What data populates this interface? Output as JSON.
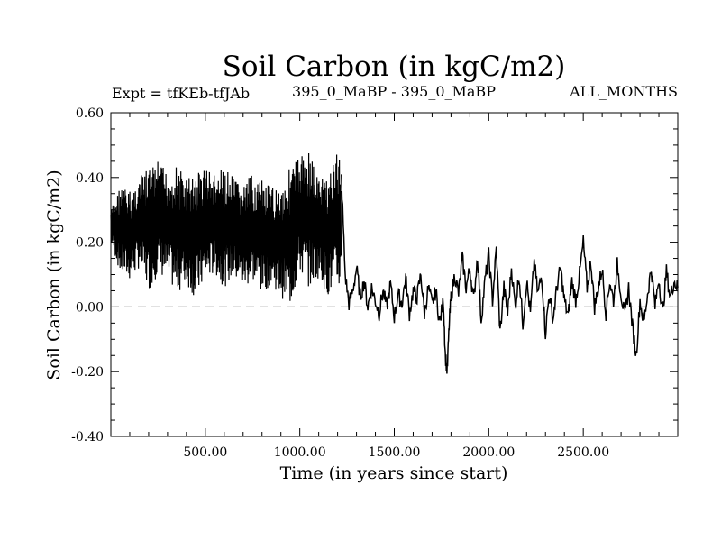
{
  "chart_data": {
    "type": "line",
    "title": "Soil Carbon (in kgC/m2)",
    "subtitle_left": "Expt = tfKEb-tfJAb",
    "subtitle_center": "395_0_MaBP - 395_0_MaBP",
    "subtitle_right": "ALL_MONTHS",
    "xlabel": "Time (in years since start)",
    "ylabel": "Soil Carbon (in kgC/m2)",
    "xlim": [
      0,
      3000
    ],
    "ylim": [
      -0.4,
      0.6
    ],
    "xticks": [
      500,
      1000,
      1500,
      2000,
      2500
    ],
    "xtick_labels": [
      "500.00",
      "1000.00",
      "1500.00",
      "2000.00",
      "2500.00"
    ],
    "yticks": [
      -0.4,
      -0.2,
      0.0,
      0.2,
      0.4,
      0.6
    ],
    "ytick_labels": [
      "-0.40",
      "-0.20",
      "0.00",
      "0.20",
      "0.40",
      "0.60"
    ],
    "reference_line": {
      "y": 0.0,
      "style": "dashed",
      "color": "#888888"
    },
    "series": [
      {
        "color": "#000000",
        "segments": [
          {
            "x_range": [
              0,
              1220
            ],
            "description": "high-variance oscillation",
            "envelope_x": [
              0,
              50,
              100,
              150,
              200,
              250,
              300,
              350,
              400,
              450,
              500,
              550,
              600,
              650,
              700,
              750,
              800,
              850,
              900,
              950,
              1000,
              1050,
              1100,
              1150,
              1200,
              1220
            ],
            "envelope_upper": [
              0.3,
              0.38,
              0.36,
              0.4,
              0.43,
              0.45,
              0.42,
              0.44,
              0.4,
              0.42,
              0.44,
              0.41,
              0.43,
              0.4,
              0.38,
              0.41,
              0.39,
              0.37,
              0.38,
              0.44,
              0.47,
              0.49,
              0.4,
              0.42,
              0.48,
              0.47
            ],
            "envelope_lower": [
              0.2,
              0.1,
              0.08,
              0.12,
              0.05,
              0.1,
              0.08,
              0.04,
              0.07,
              0.02,
              0.08,
              0.1,
              0.06,
              0.09,
              0.05,
              0.08,
              0.04,
              0.07,
              0.03,
              0.0,
              0.1,
              0.06,
              0.09,
              0.03,
              0.05,
              0.05
            ]
          },
          {
            "x_range": [
              1220,
              3000
            ],
            "description": "lower-variance fluctuation",
            "x": [
              1220,
              1240,
              1260,
              1280,
              1300,
              1320,
              1340,
              1360,
              1380,
              1400,
              1420,
              1440,
              1460,
              1480,
              1500,
              1520,
              1540,
              1560,
              1580,
              1600,
              1620,
              1640,
              1660,
              1680,
              1700,
              1720,
              1740,
              1760,
              1770,
              1780,
              1790,
              1800,
              1820,
              1840,
              1860,
              1880,
              1900,
              1920,
              1940,
              1960,
              1980,
              2000,
              2020,
              2040,
              2060,
              2080,
              2100,
              2120,
              2140,
              2160,
              2180,
              2200,
              2220,
              2240,
              2260,
              2280,
              2300,
              2320,
              2340,
              2360,
              2380,
              2400,
              2420,
              2440,
              2460,
              2480,
              2500,
              2520,
              2540,
              2560,
              2580,
              2600,
              2620,
              2640,
              2660,
              2680,
              2700,
              2720,
              2740,
              2760,
              2780,
              2800,
              2820,
              2840,
              2860,
              2880,
              2900,
              2920,
              2940,
              2960,
              2980,
              3000
            ],
            "y": [
              0.4,
              0.1,
              0.01,
              0.05,
              0.12,
              0.03,
              0.08,
              0.0,
              0.06,
              0.02,
              -0.02,
              0.05,
              0.0,
              0.07,
              -0.03,
              0.04,
              0.01,
              0.09,
              -0.02,
              0.05,
              0.03,
              0.1,
              -0.02,
              0.06,
              0.01,
              0.05,
              -0.05,
              0.02,
              -0.15,
              -0.2,
              -0.06,
              0.03,
              0.1,
              0.04,
              0.15,
              0.06,
              0.12,
              0.02,
              0.16,
              -0.04,
              0.08,
              0.16,
              0.02,
              0.18,
              -0.08,
              0.06,
              -0.02,
              0.12,
              0.0,
              0.1,
              -0.05,
              0.08,
              -0.02,
              0.14,
              0.04,
              0.1,
              -0.08,
              0.04,
              -0.04,
              0.06,
              0.12,
              0.02,
              -0.03,
              0.08,
              0.02,
              0.1,
              0.2,
              0.06,
              0.14,
              0.0,
              0.06,
              0.12,
              -0.02,
              0.08,
              0.02,
              0.13,
              0.04,
              -0.03,
              0.06,
              -0.06,
              -0.15,
              0.02,
              -0.05,
              0.04,
              0.12,
              0.0,
              0.09,
              -0.02,
              0.11,
              0.03,
              0.08,
              0.06
            ]
          }
        ]
      }
    ]
  }
}
